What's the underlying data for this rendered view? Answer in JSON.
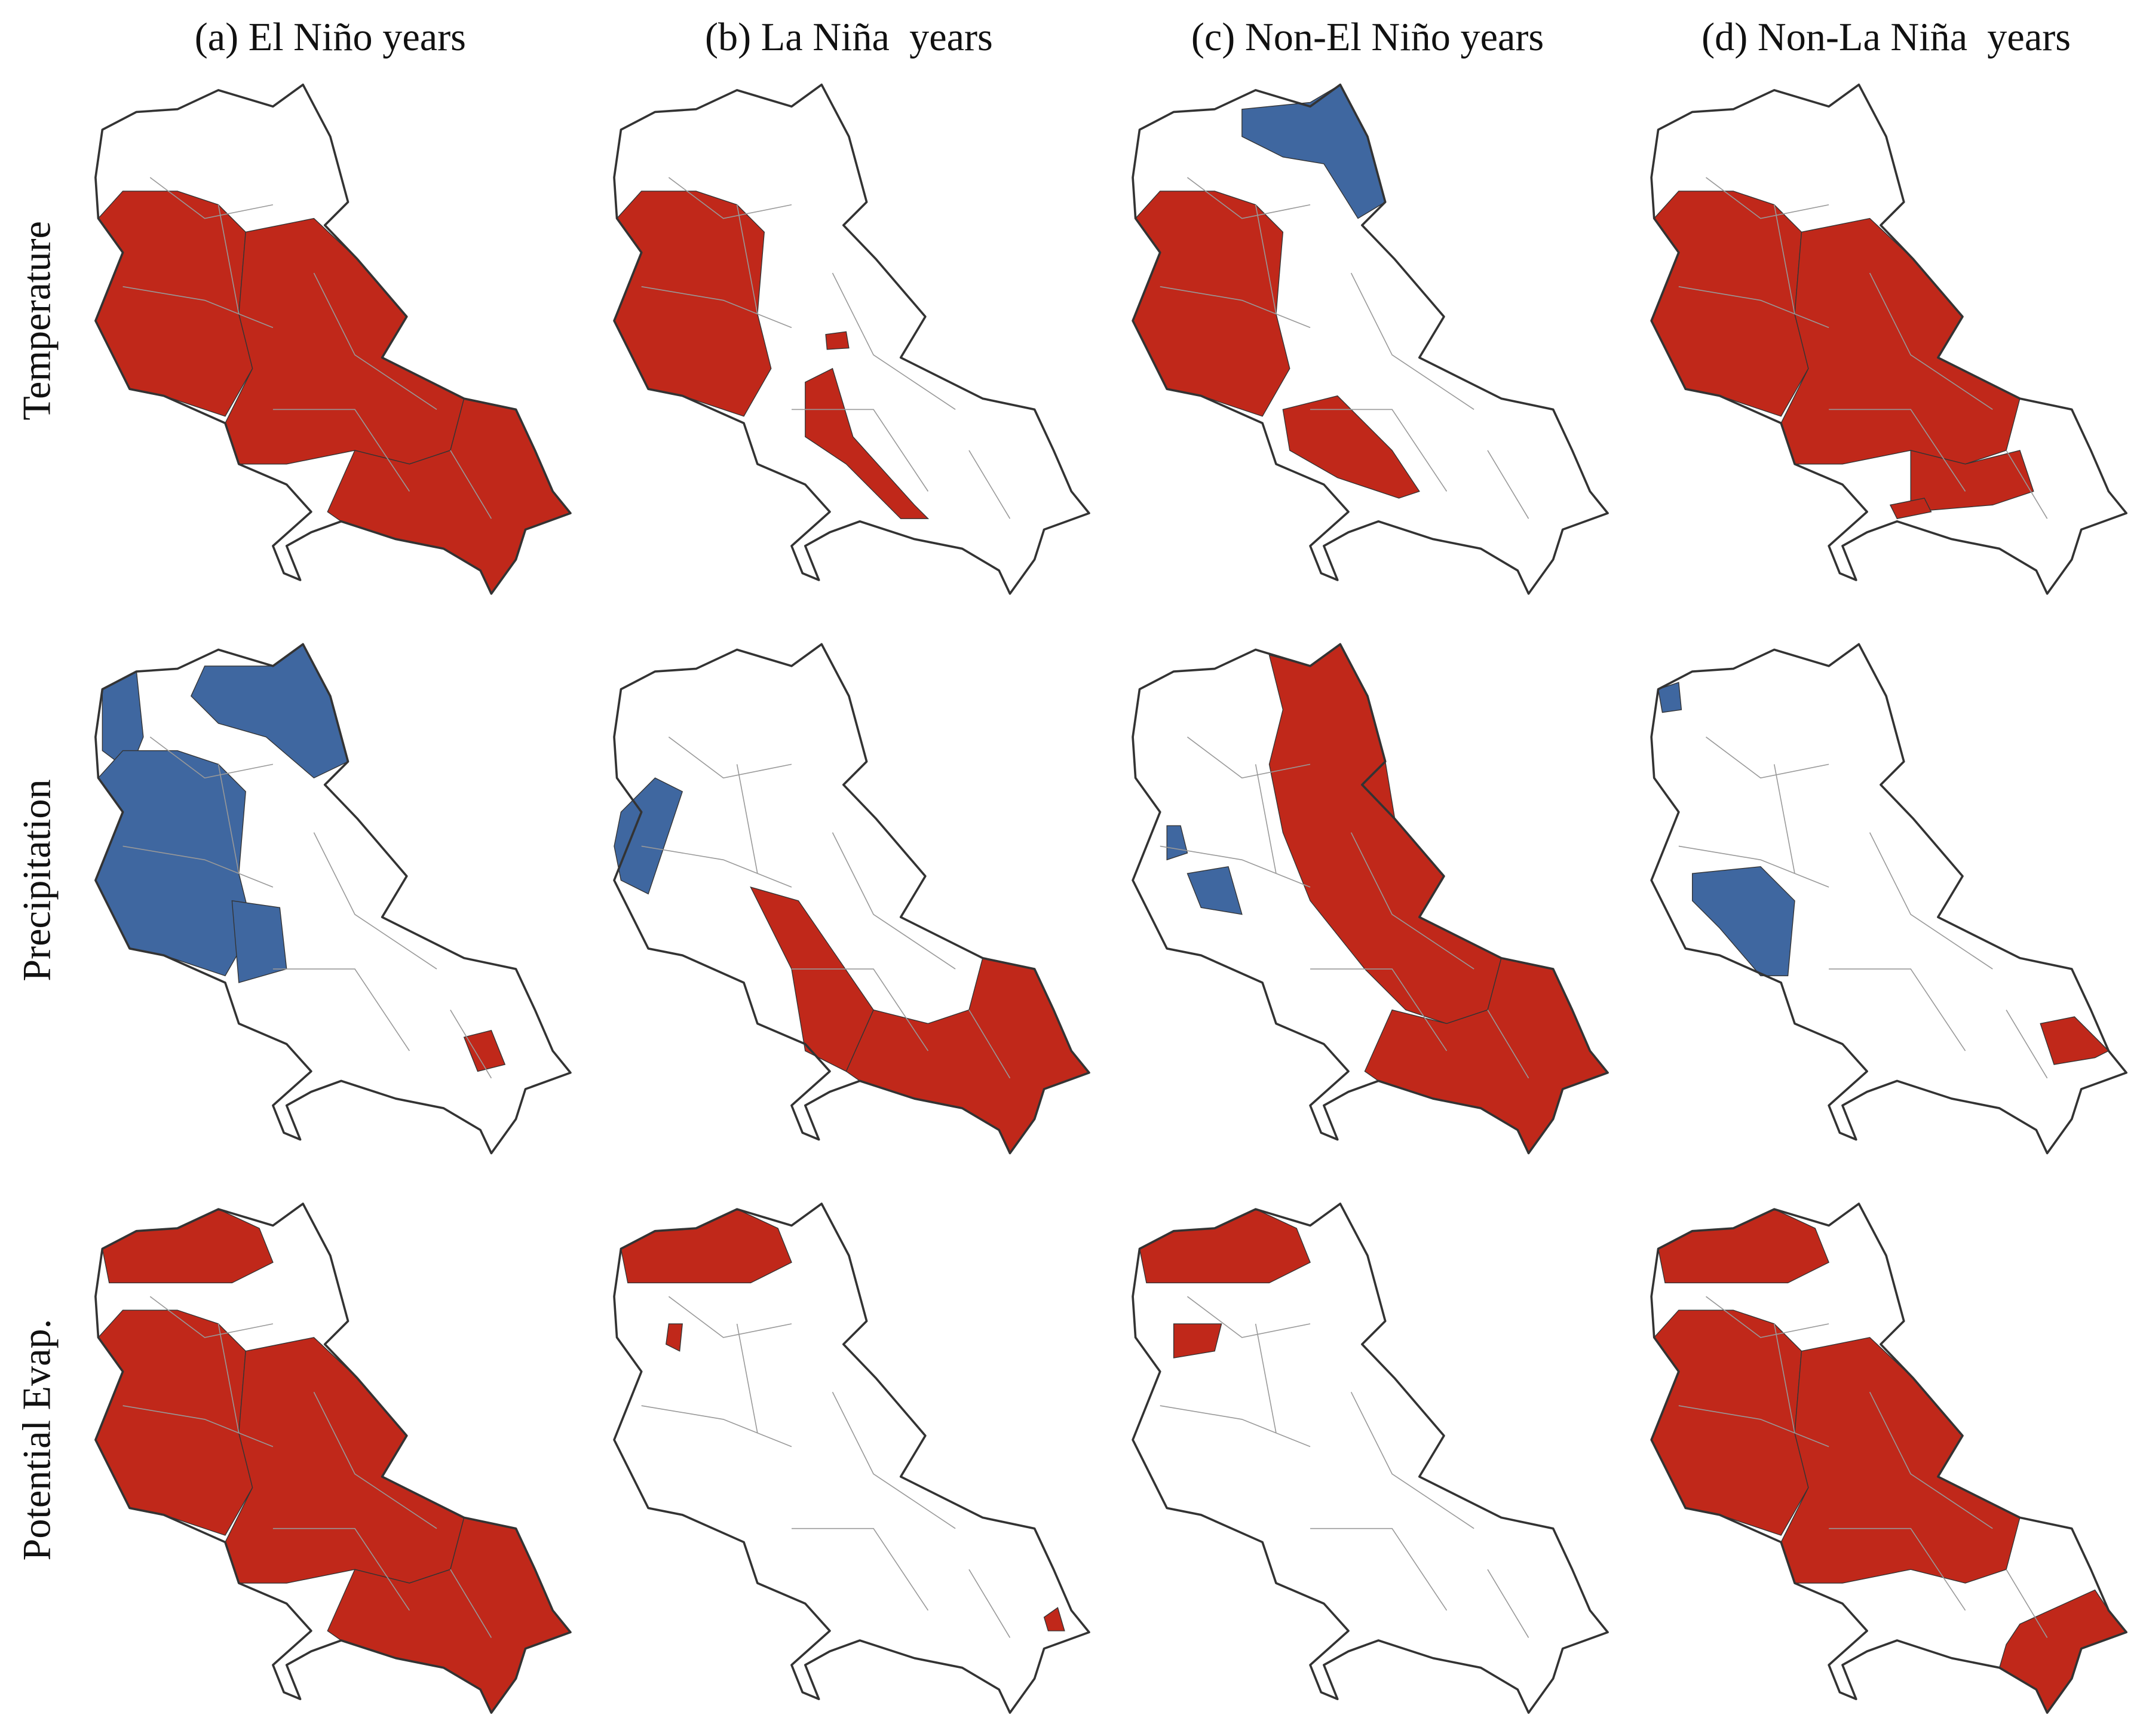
{
  "columns": [
    "(a) El Niño years",
    "(b) La Niña  years",
    "(c) Non-El Niño years",
    "(d) Non-La Niña  years"
  ],
  "rows": [
    "Temperature",
    "Precipitation",
    "Potential Evap."
  ]
}
